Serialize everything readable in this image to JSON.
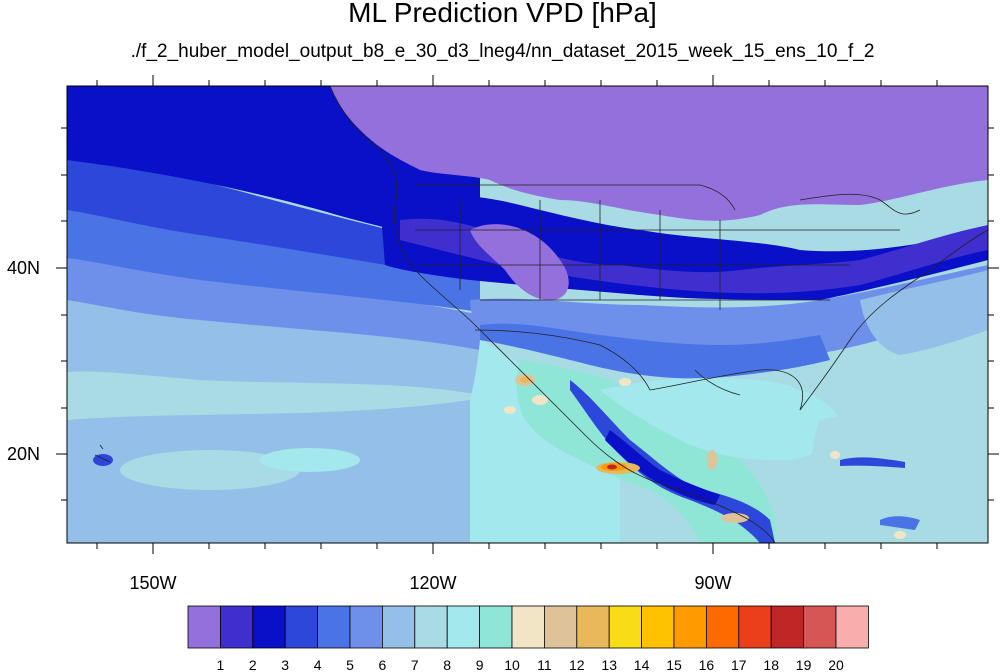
{
  "title": "ML Prediction VPD [hPa]",
  "subtitle": "./f_2_huber_model_output_b8_e_30_d3_lneg4/nn_dataset_2015_week_15_ens_10_f_2",
  "axes": {
    "x_ticks": [
      "150W",
      "120W",
      "90W"
    ],
    "y_ticks": [
      "40N",
      "20N"
    ]
  },
  "colorbar": {
    "labels": [
      "1",
      "2",
      "3",
      "4",
      "5",
      "6",
      "7",
      "8",
      "9",
      "10",
      "11",
      "12",
      "13",
      "14",
      "15",
      "16",
      "17",
      "18",
      "19",
      "20"
    ],
    "colors": [
      "#9370db",
      "#3f2fcf",
      "#0a0fc8",
      "#2e47db",
      "#4a73e6",
      "#6e90ea",
      "#93bfe9",
      "#a8dbe4",
      "#a3e8ec",
      "#8fe6d6",
      "#f1e5c6",
      "#dfc398",
      "#e8b95a",
      "#f8dc16",
      "#ffc100",
      "#ff9a00",
      "#ff6a00",
      "#eb3e1a",
      "#c12626",
      "#d65555",
      "#f9aeae"
    ]
  },
  "map": {
    "projection": "cylindrical equidistant",
    "lon_range": [
      "160W",
      "62W"
    ],
    "lat_range": [
      "10N",
      "59N"
    ],
    "variable": "VPD [hPa]"
  }
}
